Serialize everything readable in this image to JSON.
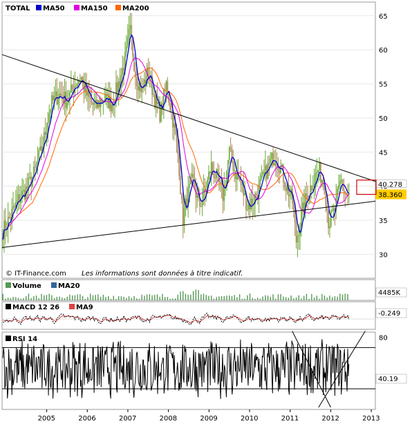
{
  "copyright": "© IT-Finance.com",
  "disclaimer": "Les informations sont données à titre indicatif.",
  "colors": {
    "ma50": "#0000cc",
    "ma150": "#e000e0",
    "ma200": "#ff6600",
    "candle_up": "#66aa33",
    "candle_down": "#aa8855",
    "volume": "#559955",
    "macd": "#000000",
    "macd_signal": "#dd4444",
    "rsi": "#000000",
    "value_box_bg": "#ffcc00",
    "value_box_border": "#cc0000"
  },
  "chart_data": [
    {
      "type": "line",
      "panel": "price",
      "title": "TOTAL",
      "legend": [
        "TOTAL",
        "MA50",
        "MA150",
        "MA200"
      ],
      "legend_position": "top-left",
      "ylim": [
        26.5,
        67
      ],
      "y_ticks": [
        30,
        35,
        40,
        45,
        50,
        55,
        60,
        65
      ],
      "x_ticks": [
        "2005",
        "2006",
        "2007",
        "2008",
        "2009",
        "2010",
        "2011",
        "2012",
        "2013"
      ],
      "xlim": [
        2004.4,
        2013.6
      ],
      "grid": true,
      "last_price_label": "38.360",
      "secondary_price_label": "40.278",
      "price_points": [
        [
          2004.42,
          33.5
        ],
        [
          2004.6,
          35.5
        ],
        [
          2004.8,
          38
        ],
        [
          2005.0,
          39.5
        ],
        [
          2005.2,
          42
        ],
        [
          2005.4,
          46
        ],
        [
          2005.6,
          52
        ],
        [
          2005.8,
          53.5
        ],
        [
          2006.0,
          52.5
        ],
        [
          2006.2,
          55
        ],
        [
          2006.35,
          56
        ],
        [
          2006.5,
          53
        ],
        [
          2006.7,
          51.5
        ],
        [
          2006.9,
          53
        ],
        [
          2007.1,
          52
        ],
        [
          2007.3,
          55.5
        ],
        [
          2007.45,
          59
        ],
        [
          2007.55,
          63
        ],
        [
          2007.7,
          56
        ],
        [
          2007.85,
          54
        ],
        [
          2008.0,
          57
        ],
        [
          2008.15,
          53
        ],
        [
          2008.3,
          50.5
        ],
        [
          2008.45,
          55
        ],
        [
          2008.6,
          50
        ],
        [
          2008.75,
          44
        ],
        [
          2008.85,
          35
        ],
        [
          2008.95,
          38
        ],
        [
          2009.1,
          41
        ],
        [
          2009.25,
          37
        ],
        [
          2009.4,
          39
        ],
        [
          2009.55,
          43
        ],
        [
          2009.7,
          41
        ],
        [
          2009.85,
          38.5
        ],
        [
          2010.0,
          45
        ],
        [
          2010.15,
          42
        ],
        [
          2010.3,
          40
        ],
        [
          2010.45,
          37
        ],
        [
          2010.6,
          38
        ],
        [
          2010.75,
          40
        ],
        [
          2010.9,
          42
        ],
        [
          2011.1,
          44.5
        ],
        [
          2011.25,
          43
        ],
        [
          2011.4,
          40
        ],
        [
          2011.55,
          38
        ],
        [
          2011.65,
          32
        ],
        [
          2011.75,
          35
        ],
        [
          2011.9,
          38.5
        ],
        [
          2012.05,
          40.5
        ],
        [
          2012.2,
          42.5
        ],
        [
          2012.35,
          40
        ],
        [
          2012.45,
          34.5
        ],
        [
          2012.6,
          36.5
        ],
        [
          2012.75,
          41
        ],
        [
          2012.85,
          39
        ],
        [
          2012.95,
          38.36
        ]
      ],
      "trendlines": [
        {
          "from": [
            2004.4,
            59.3
          ],
          "to": [
            2013.6,
            40.7
          ]
        },
        {
          "from": [
            2004.4,
            31.0
          ],
          "to": [
            2013.6,
            37.8
          ]
        }
      ]
    },
    {
      "type": "bar",
      "panel": "volume",
      "legend": [
        "Volume",
        "MA20"
      ],
      "last_value_label": "4485K"
    },
    {
      "type": "line",
      "panel": "macd",
      "legend": [
        "MACD 12 26",
        "MA9"
      ],
      "last_value_label": "-0.249"
    },
    {
      "type": "line",
      "panel": "rsi",
      "legend": [
        "RSI 14"
      ],
      "ylim": [
        10,
        85
      ],
      "y_ticks": [
        80
      ],
      "levels": [
        70,
        30
      ],
      "last_value_label": "40.19"
    }
  ]
}
